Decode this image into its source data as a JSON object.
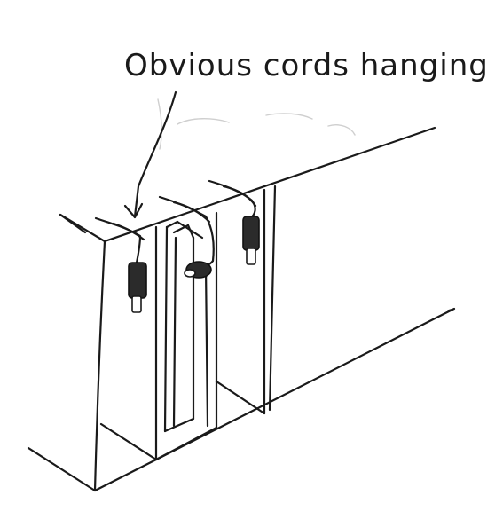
{
  "annotation": {
    "text": "Obvious cords hanging"
  },
  "colors": {
    "ink": "#1a1a1a",
    "paper": "#ffffff",
    "ghost_erasure": "#cfcfcf"
  },
  "illustration": {
    "subject": "hand-drawn sketch of a rack with hanging cords and plugs",
    "cords": 3
  }
}
